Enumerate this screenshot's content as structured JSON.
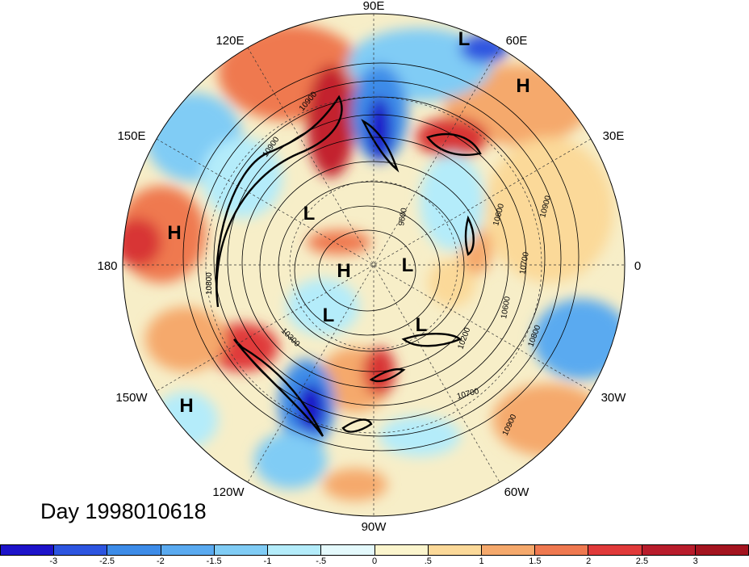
{
  "title": "Day 1998010618",
  "longitude_labels": [
    "90E",
    "60E",
    "30E",
    "0",
    "30W",
    "60W",
    "90W",
    "120W",
    "150W",
    "180",
    "150E",
    "120E"
  ],
  "pressure_centers": [
    {
      "label": "L",
      "name": "low-marker"
    },
    {
      "label": "H",
      "name": "high-marker"
    },
    {
      "label": "H",
      "name": "high-marker"
    },
    {
      "label": "L",
      "name": "low-marker"
    },
    {
      "label": "H",
      "name": "high-marker"
    },
    {
      "label": "L",
      "name": "low-marker"
    },
    {
      "label": "L",
      "name": "low-marker"
    },
    {
      "label": "L",
      "name": "low-marker"
    },
    {
      "label": "H",
      "name": "high-marker"
    }
  ],
  "contour_labels": [
    "10900",
    "10600",
    "10900",
    "10700",
    "10600",
    "10800",
    "10200",
    "10700",
    "10900",
    "10300",
    "10800",
    "10900",
    "9600"
  ],
  "colorbar": {
    "ticks": [
      "-3",
      "-2.5",
      "-2",
      "-1.5",
      "-1",
      "-.5",
      "0",
      ".5",
      "1",
      "1.5",
      "2",
      "2.5",
      "3"
    ],
    "colors": [
      "#1d13c9",
      "#2d55e0",
      "#3d8ce8",
      "#5aaaf0",
      "#80ccf5",
      "#b4ecfa",
      "#e4f9fc",
      "#fbf5cd",
      "#fbd999",
      "#f5a96c",
      "#ef7950",
      "#e03a3a",
      "#b81c2b",
      "#a4141f"
    ]
  }
}
